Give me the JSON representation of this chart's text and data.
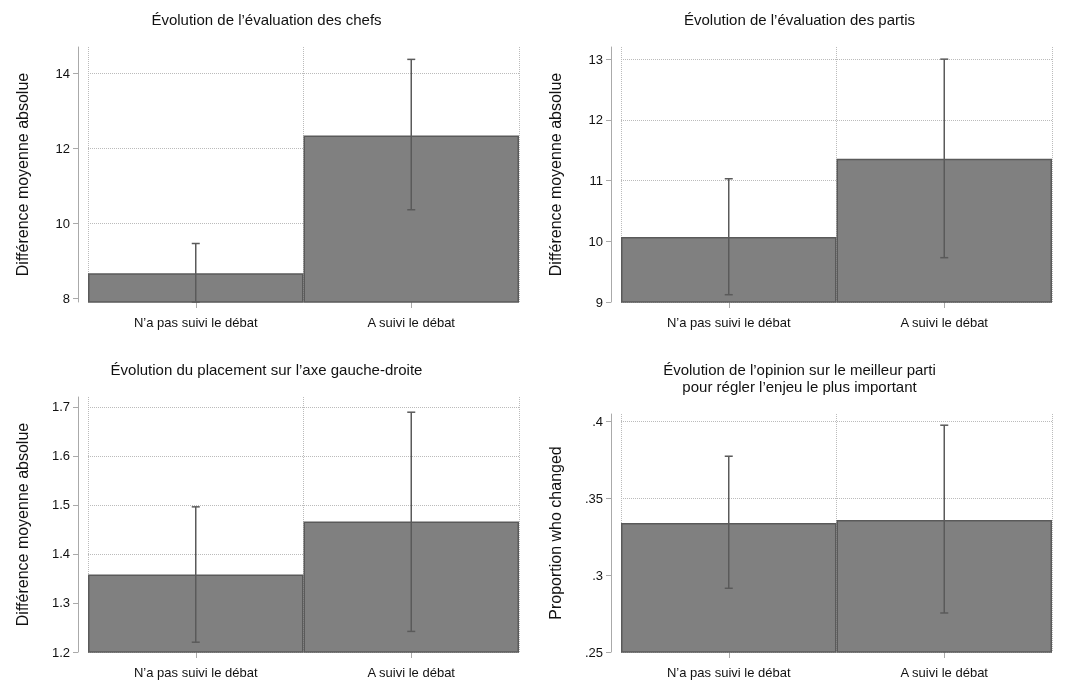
{
  "chart_data": [
    {
      "type": "bar",
      "title": "Évolution de l’évaluation des chefs",
      "ylabel": "Différence moyenne absolue",
      "categories": [
        "N’a pas suivi le débat",
        "A suivi le débat"
      ],
      "values": [
        8.67,
        12.34
      ],
      "color": "#808080",
      "errors": [
        [
          7.9,
          9.46
        ],
        [
          10.36,
          14.37
        ]
      ],
      "ylim": [
        7.9,
        14.7
      ],
      "yticks": [
        8,
        10,
        12,
        14
      ],
      "grid": true
    },
    {
      "type": "bar",
      "title": "Évolution de l’évaluation des partis",
      "ylabel": "Différence moyenne absolue",
      "categories": [
        "N’a pas suivi le débat",
        "A suivi le débat"
      ],
      "values": [
        10.07,
        11.36
      ],
      "color": "#808080",
      "errors": [
        [
          9.12,
          11.03
        ],
        [
          9.73,
          13.0
        ]
      ],
      "ylim": [
        9,
        13.2
      ],
      "yticks": [
        9,
        10,
        11,
        12,
        13
      ],
      "grid": true
    },
    {
      "type": "bar",
      "title": "Évolution du placement sur l’axe gauche-droite",
      "ylabel": "Différence moyenne absolue",
      "categories": [
        "N’a pas suivi le débat",
        "A suivi le débat"
      ],
      "values": [
        1.358,
        1.466
      ],
      "color": "#808080",
      "errors": [
        [
          1.22,
          1.496
        ],
        [
          1.242,
          1.689
        ]
      ],
      "ylim": [
        1.2,
        1.72
      ],
      "yticks": [
        1.2,
        1.3,
        1.4,
        1.5,
        1.6,
        1.7
      ],
      "grid": true
    },
    {
      "type": "bar",
      "title": "Évolution de l’opinion sur le meilleur parti\npour régler l’enjeu le plus important",
      "ylabel": "Proportion who changed",
      "categories": [
        "N’a pas suivi le débat",
        "A suivi le débat"
      ],
      "values": [
        0.334,
        0.336
      ],
      "color": "#808080",
      "errors": [
        [
          0.2915,
          0.3775
        ],
        [
          0.2754,
          0.3977
        ]
      ],
      "ylim": [
        0.25,
        0.405
      ],
      "yticks": [
        {
          "value": 0.25,
          "label": ".25"
        },
        {
          "value": 0.3,
          "label": ".3"
        },
        {
          "value": 0.35,
          "label": ".35"
        },
        {
          "value": 0.4,
          "label": ".4"
        }
      ],
      "grid": true
    }
  ]
}
